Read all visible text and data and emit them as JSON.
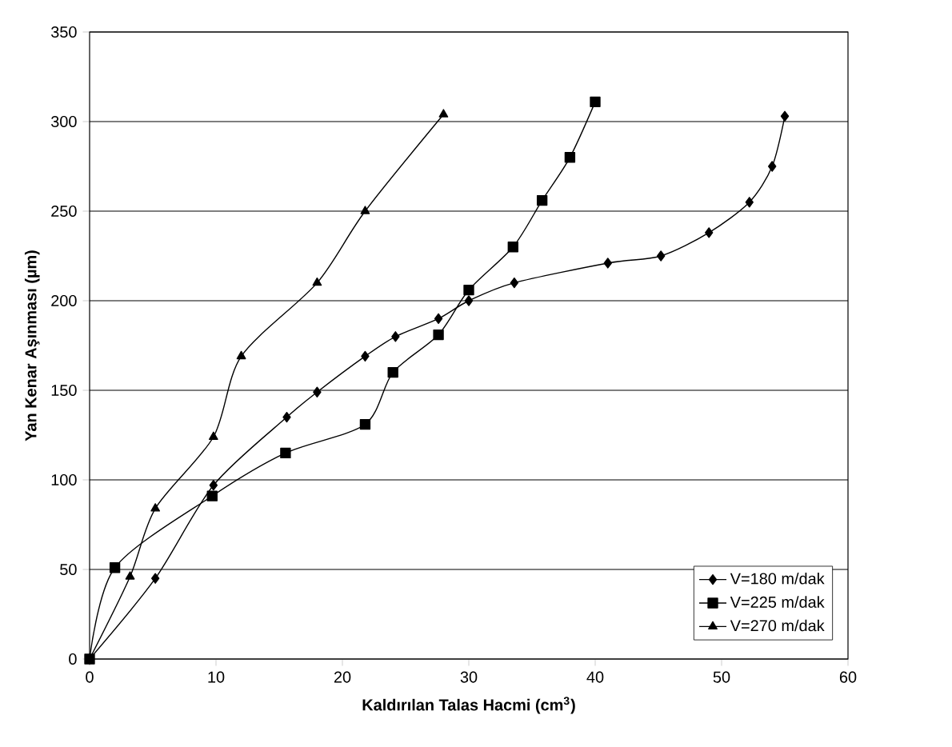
{
  "chart_data": {
    "type": "line",
    "xlabel": "Kaldırılan Talas Hacmi (cm$^{3}$)",
    "ylabel": "Yan Kenar Aşınması (µm)",
    "xlim": [
      0,
      60
    ],
    "xticks": [
      0,
      10,
      20,
      30,
      40,
      50,
      60
    ],
    "ylim": [
      0,
      350
    ],
    "yticks": [
      0,
      50,
      100,
      150,
      200,
      250,
      300,
      350
    ],
    "grid": "y",
    "legend": "bottom right",
    "line_style": "solid",
    "series": [
      {
        "name": "V=180 m/dak",
        "color": "#000000",
        "marker": "diamond",
        "x": [
          0,
          5.2,
          9.8,
          15.6,
          18,
          21.8,
          24.2,
          27.6,
          30,
          33.6,
          41,
          45.2,
          49,
          52.2,
          54,
          55
        ],
        "values": [
          0,
          45,
          97,
          135,
          149,
          169,
          180,
          190,
          200,
          210,
          221,
          225,
          238,
          255,
          275,
          303
        ]
      },
      {
        "name": "V=225 m/dak",
        "color": "#000000",
        "marker": "square",
        "x": [
          0,
          2,
          9.7,
          15.5,
          21.8,
          24,
          27.6,
          30,
          33.5,
          35.8,
          38,
          40
        ],
        "values": [
          0,
          51,
          91,
          115,
          131,
          160,
          181,
          206,
          230,
          256,
          280,
          311
        ]
      },
      {
        "name": "V=270 m/dak",
        "color": "#000000",
        "marker": "triangle",
        "x": [
          0,
          3.2,
          5.2,
          9.8,
          12,
          18,
          21.8,
          28
        ],
        "values": [
          0,
          46,
          84,
          124,
          169,
          210,
          250,
          304
        ]
      }
    ]
  }
}
